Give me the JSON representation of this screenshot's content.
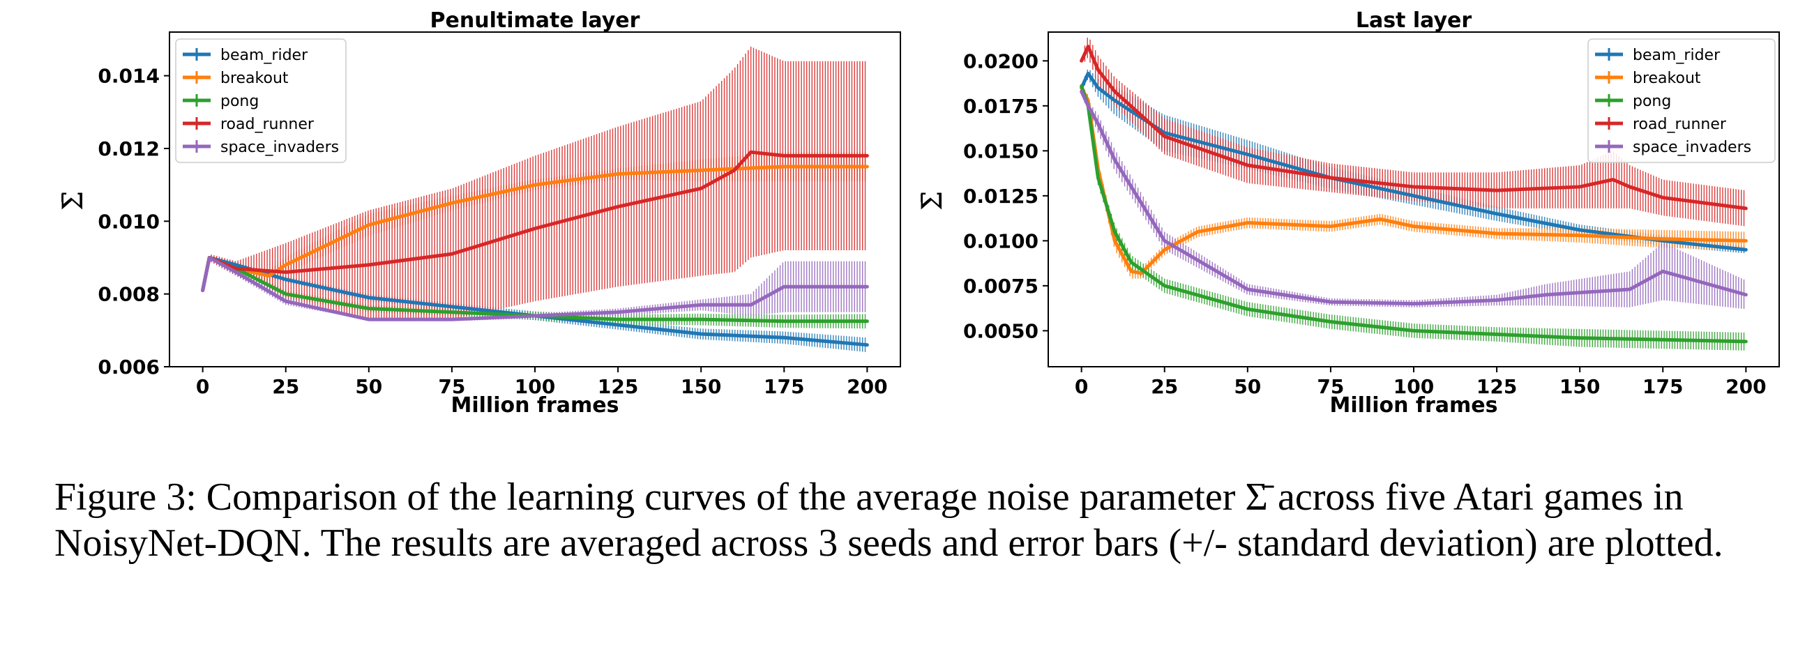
{
  "chart_data": [
    {
      "type": "line",
      "title": "Penultimate layer",
      "xlabel": "Million frames",
      "ylabel": "Σ̄",
      "xlim": [
        -10,
        210
      ],
      "ylim": [
        0.006,
        0.0152
      ],
      "xticks": [
        0,
        25,
        50,
        75,
        100,
        125,
        150,
        175,
        200
      ],
      "yticks": [
        0.006,
        0.008,
        0.01,
        0.012,
        0.014
      ],
      "ytick_labels": [
        "0.006",
        "0.008",
        "0.010",
        "0.012",
        "0.014"
      ],
      "legend_position": "upper-left",
      "error_bars": true,
      "series": [
        {
          "name": "beam_rider",
          "color": "#1f77b4",
          "x": [
            0,
            2,
            10,
            25,
            50,
            75,
            100,
            125,
            150,
            175,
            200
          ],
          "y": [
            0.0081,
            0.009,
            0.0088,
            0.0084,
            0.0079,
            0.00765,
            0.0074,
            0.00715,
            0.0069,
            0.0068,
            0.0066
          ],
          "err": [
            5e-05,
            5e-05,
            8e-05,
            8e-05,
            0.0001,
            0.0001,
            0.00012,
            0.00013,
            0.00015,
            0.00017,
            0.0002
          ]
        },
        {
          "name": "breakout",
          "color": "#ff7f0e",
          "x": [
            0,
            2,
            10,
            20,
            25,
            50,
            75,
            100,
            125,
            150,
            175,
            200
          ],
          "y": [
            0.0081,
            0.009,
            0.0087,
            0.0085,
            0.0088,
            0.0099,
            0.0105,
            0.011,
            0.0113,
            0.0114,
            0.0115,
            0.0115
          ],
          "err": [
            5e-05,
            5e-05,
            0.0001,
            0.00015,
            0.00022,
            0.0003,
            0.0002,
            0.00015,
            0.00015,
            0.0003,
            0.0004,
            0.0004
          ]
        },
        {
          "name": "pong",
          "color": "#2ca02c",
          "x": [
            0,
            2,
            10,
            25,
            50,
            75,
            100,
            125,
            150,
            175,
            200
          ],
          "y": [
            0.0081,
            0.009,
            0.0087,
            0.008,
            0.0076,
            0.0075,
            0.0074,
            0.0073,
            0.0073,
            0.00725,
            0.00725
          ],
          "err": [
            5e-05,
            5e-05,
            0.0001,
            0.0001,
            0.0001,
            0.0001,
            0.00012,
            0.00014,
            0.00016,
            0.00018,
            0.0002
          ]
        },
        {
          "name": "road_runner",
          "color": "#d62728",
          "x": [
            0,
            2,
            10,
            25,
            50,
            75,
            100,
            125,
            150,
            160,
            165,
            175,
            200
          ],
          "y": [
            0.0081,
            0.009,
            0.0087,
            0.0086,
            0.0088,
            0.0091,
            0.0098,
            0.0104,
            0.0109,
            0.0114,
            0.0119,
            0.0118,
            0.0118
          ],
          "err": [
            5e-05,
            0.0001,
            0.0002,
            0.0008,
            0.0015,
            0.0018,
            0.002,
            0.0022,
            0.0024,
            0.0028,
            0.0029,
            0.0026,
            0.0026
          ]
        },
        {
          "name": "space_invaders",
          "color": "#9467bd",
          "x": [
            0,
            2,
            10,
            25,
            40,
            50,
            75,
            100,
            125,
            150,
            165,
            175,
            200
          ],
          "y": [
            0.0081,
            0.009,
            0.0086,
            0.0078,
            0.0075,
            0.0073,
            0.0073,
            0.0074,
            0.0075,
            0.0077,
            0.0077,
            0.0082,
            0.0082
          ],
          "err": [
            5e-05,
            5e-05,
            0.0001,
            0.0001,
            5e-05,
            5e-05,
            5e-05,
            7e-05,
            0.0001,
            0.00015,
            0.0003,
            0.0007,
            0.0007
          ]
        }
      ]
    },
    {
      "type": "line",
      "title": "Last layer",
      "xlabel": "Million frames",
      "ylabel": "Σ̄",
      "xlim": [
        -10,
        210
      ],
      "ylim": [
        0.003,
        0.0216
      ],
      "xticks": [
        0,
        25,
        50,
        75,
        100,
        125,
        150,
        175,
        200
      ],
      "yticks": [
        0.005,
        0.0075,
        0.01,
        0.0125,
        0.015,
        0.0175,
        0.02
      ],
      "ytick_labels": [
        "0.0050",
        "0.0075",
        "0.0100",
        "0.0125",
        "0.0150",
        "0.0175",
        "0.0200"
      ],
      "legend_position": "upper-right",
      "error_bars": true,
      "series": [
        {
          "name": "beam_rider",
          "color": "#1f77b4",
          "x": [
            0,
            2,
            5,
            10,
            25,
            50,
            75,
            100,
            125,
            150,
            175,
            200
          ],
          "y": [
            0.0185,
            0.0193,
            0.0185,
            0.0178,
            0.016,
            0.0148,
            0.0135,
            0.0125,
            0.0115,
            0.0106,
            0.01,
            0.0095
          ],
          "err": [
            0.0002,
            0.0003,
            0.0005,
            0.0008,
            0.001,
            0.0008,
            0.0006,
            0.0005,
            0.0004,
            0.0003,
            0.0003,
            0.0002
          ]
        },
        {
          "name": "breakout",
          "color": "#ff7f0e",
          "x": [
            0,
            2,
            5,
            10,
            15,
            18,
            25,
            35,
            50,
            75,
            90,
            100,
            125,
            150,
            175,
            200
          ],
          "y": [
            0.0185,
            0.0178,
            0.014,
            0.01,
            0.0083,
            0.0082,
            0.0095,
            0.0105,
            0.011,
            0.0108,
            0.0112,
            0.0108,
            0.0104,
            0.0103,
            0.0101,
            0.01
          ],
          "err": [
            0.0002,
            0.0003,
            0.0004,
            0.0005,
            0.0004,
            0.0003,
            0.0003,
            0.0003,
            0.0003,
            0.0003,
            0.0003,
            0.0003,
            0.0003,
            0.0004,
            0.0005,
            0.0005
          ]
        },
        {
          "name": "pong",
          "color": "#2ca02c",
          "x": [
            0,
            2,
            5,
            10,
            15,
            25,
            50,
            75,
            100,
            125,
            150,
            175,
            200
          ],
          "y": [
            0.0186,
            0.0175,
            0.0135,
            0.0105,
            0.0088,
            0.0075,
            0.0062,
            0.0055,
            0.005,
            0.0048,
            0.0046,
            0.0045,
            0.0044
          ],
          "err": [
            0.0002,
            0.0003,
            0.0004,
            0.0004,
            0.0004,
            0.0004,
            0.0004,
            0.0004,
            0.0004,
            0.0004,
            0.0005,
            0.0005,
            0.0005
          ]
        },
        {
          "name": "road_runner",
          "color": "#d62728",
          "x": [
            0,
            2,
            5,
            10,
            25,
            50,
            75,
            100,
            125,
            150,
            160,
            165,
            175,
            200
          ],
          "y": [
            0.02,
            0.0208,
            0.0195,
            0.0183,
            0.0158,
            0.0142,
            0.0135,
            0.013,
            0.0128,
            0.013,
            0.0134,
            0.013,
            0.0124,
            0.0118
          ],
          "err": [
            0.0003,
            0.0006,
            0.0008,
            0.0008,
            0.001,
            0.001,
            0.0008,
            0.0008,
            0.001,
            0.0012,
            0.0016,
            0.0012,
            0.001,
            0.001
          ]
        },
        {
          "name": "space_invaders",
          "color": "#9467bd",
          "x": [
            0,
            2,
            5,
            10,
            25,
            50,
            75,
            100,
            125,
            140,
            165,
            175,
            200
          ],
          "y": [
            0.0183,
            0.0175,
            0.0165,
            0.0145,
            0.01,
            0.0073,
            0.0066,
            0.0065,
            0.0067,
            0.007,
            0.0073,
            0.0083,
            0.007
          ],
          "err": [
            0.0002,
            0.0003,
            0.0005,
            0.0006,
            0.0005,
            0.0003,
            0.0002,
            0.0002,
            0.0003,
            0.0006,
            0.001,
            0.0016,
            0.0008
          ]
        }
      ]
    }
  ],
  "caption": "Figure 3: Comparison of the learning curves of the average noise parameter Σ̄ across five Atari games in NoisyNet-DQN. The results are averaged across 3 seeds and error bars (+/- standard deviation) are plotted."
}
